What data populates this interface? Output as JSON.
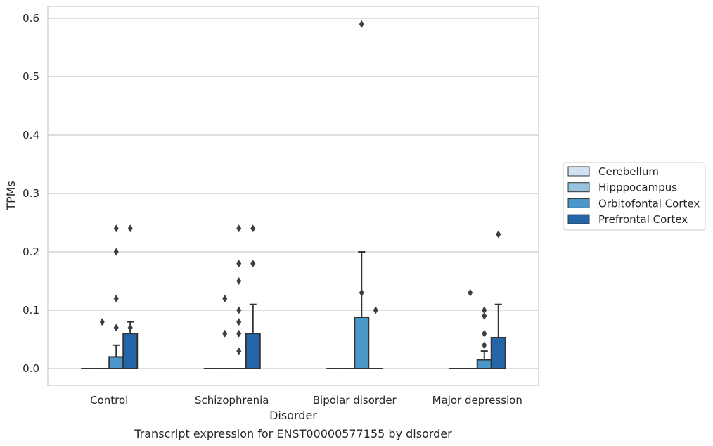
{
  "chart_data": {
    "type": "box",
    "xlabel": "Disorder",
    "ylabel": "TPMs",
    "caption": "Transcript expression for ENST00000577155 by disorder",
    "ylim": [
      -0.03,
      0.62
    ],
    "yticks": [
      0.0,
      0.1,
      0.2,
      0.3,
      0.4,
      0.5,
      0.6
    ],
    "ytick_labels": [
      "0.0",
      "0.1",
      "0.2",
      "0.3",
      "0.4",
      "0.5",
      "0.6"
    ],
    "grid": "horizontal",
    "legend_position": "right",
    "categories": [
      "Control",
      "Schizophrenia",
      "Bipolar disorder",
      "Major depression"
    ],
    "series": [
      {
        "name": "Cerebellum",
        "color": "#d0e1f2",
        "boxes": [
          {
            "q1": 0,
            "median": 0,
            "q3": 0,
            "whislo": 0,
            "whishi": 0,
            "outliers": []
          },
          {
            "q1": 0,
            "median": 0,
            "q3": 0,
            "whislo": 0,
            "whishi": 0,
            "outliers": []
          },
          {
            "q1": 0,
            "median": 0,
            "q3": 0,
            "whislo": 0,
            "whishi": 0,
            "outliers": []
          },
          {
            "q1": 0,
            "median": 0,
            "q3": 0,
            "whislo": 0,
            "whishi": 0,
            "outliers": []
          }
        ]
      },
      {
        "name": "Hipppocampus",
        "color": "#94c4df",
        "boxes": [
          {
            "q1": 0,
            "median": 0,
            "q3": 0,
            "whislo": 0,
            "whishi": 0,
            "outliers": [
              0.08
            ]
          },
          {
            "q1": 0,
            "median": 0,
            "q3": 0,
            "whislo": 0,
            "whishi": 0,
            "outliers": [
              0.06,
              0.12
            ]
          },
          {
            "q1": 0,
            "median": 0,
            "q3": 0,
            "whislo": 0,
            "whishi": 0,
            "outliers": []
          },
          {
            "q1": 0,
            "median": 0,
            "q3": 0,
            "whislo": 0,
            "whishi": 0,
            "outliers": [
              0.13
            ]
          }
        ]
      },
      {
        "name": "Orbitofontal Cortex",
        "color": "#4a98c9",
        "boxes": [
          {
            "q1": 0,
            "median": 0,
            "q3": 0.02,
            "whislo": 0,
            "whishi": 0.04,
            "outliers": [
              0.07,
              0.12,
              0.2,
              0.24
            ]
          },
          {
            "q1": 0,
            "median": 0,
            "q3": 0,
            "whislo": 0,
            "whishi": 0,
            "outliers": [
              0.03,
              0.06,
              0.08,
              0.1,
              0.15,
              0.18,
              0.24
            ]
          },
          {
            "q1": 0,
            "median": 0,
            "q3": 0.088,
            "whislo": 0,
            "whishi": 0.2,
            "outliers": [
              0.13,
              0.59
            ]
          },
          {
            "q1": 0,
            "median": 0,
            "q3": 0.015,
            "whislo": 0,
            "whishi": 0.03,
            "outliers": [
              0.04,
              0.06,
              0.09,
              0.1
            ]
          }
        ]
      },
      {
        "name": "Prefrontal Cortex",
        "color": "#2464a8",
        "boxes": [
          {
            "q1": 0,
            "median": 0,
            "q3": 0.06,
            "whislo": 0,
            "whishi": 0.08,
            "outliers": [
              0.07,
              0.24
            ]
          },
          {
            "q1": 0,
            "median": 0,
            "q3": 0.06,
            "whislo": 0,
            "whishi": 0.11,
            "outliers": [
              0.18,
              0.24
            ]
          },
          {
            "q1": 0,
            "median": 0,
            "q3": 0,
            "whislo": 0,
            "whishi": 0,
            "outliers": [
              0.1
            ]
          },
          {
            "q1": 0,
            "median": 0,
            "q3": 0.053,
            "whislo": 0,
            "whishi": 0.11,
            "outliers": [
              0.23
            ]
          }
        ]
      }
    ]
  }
}
